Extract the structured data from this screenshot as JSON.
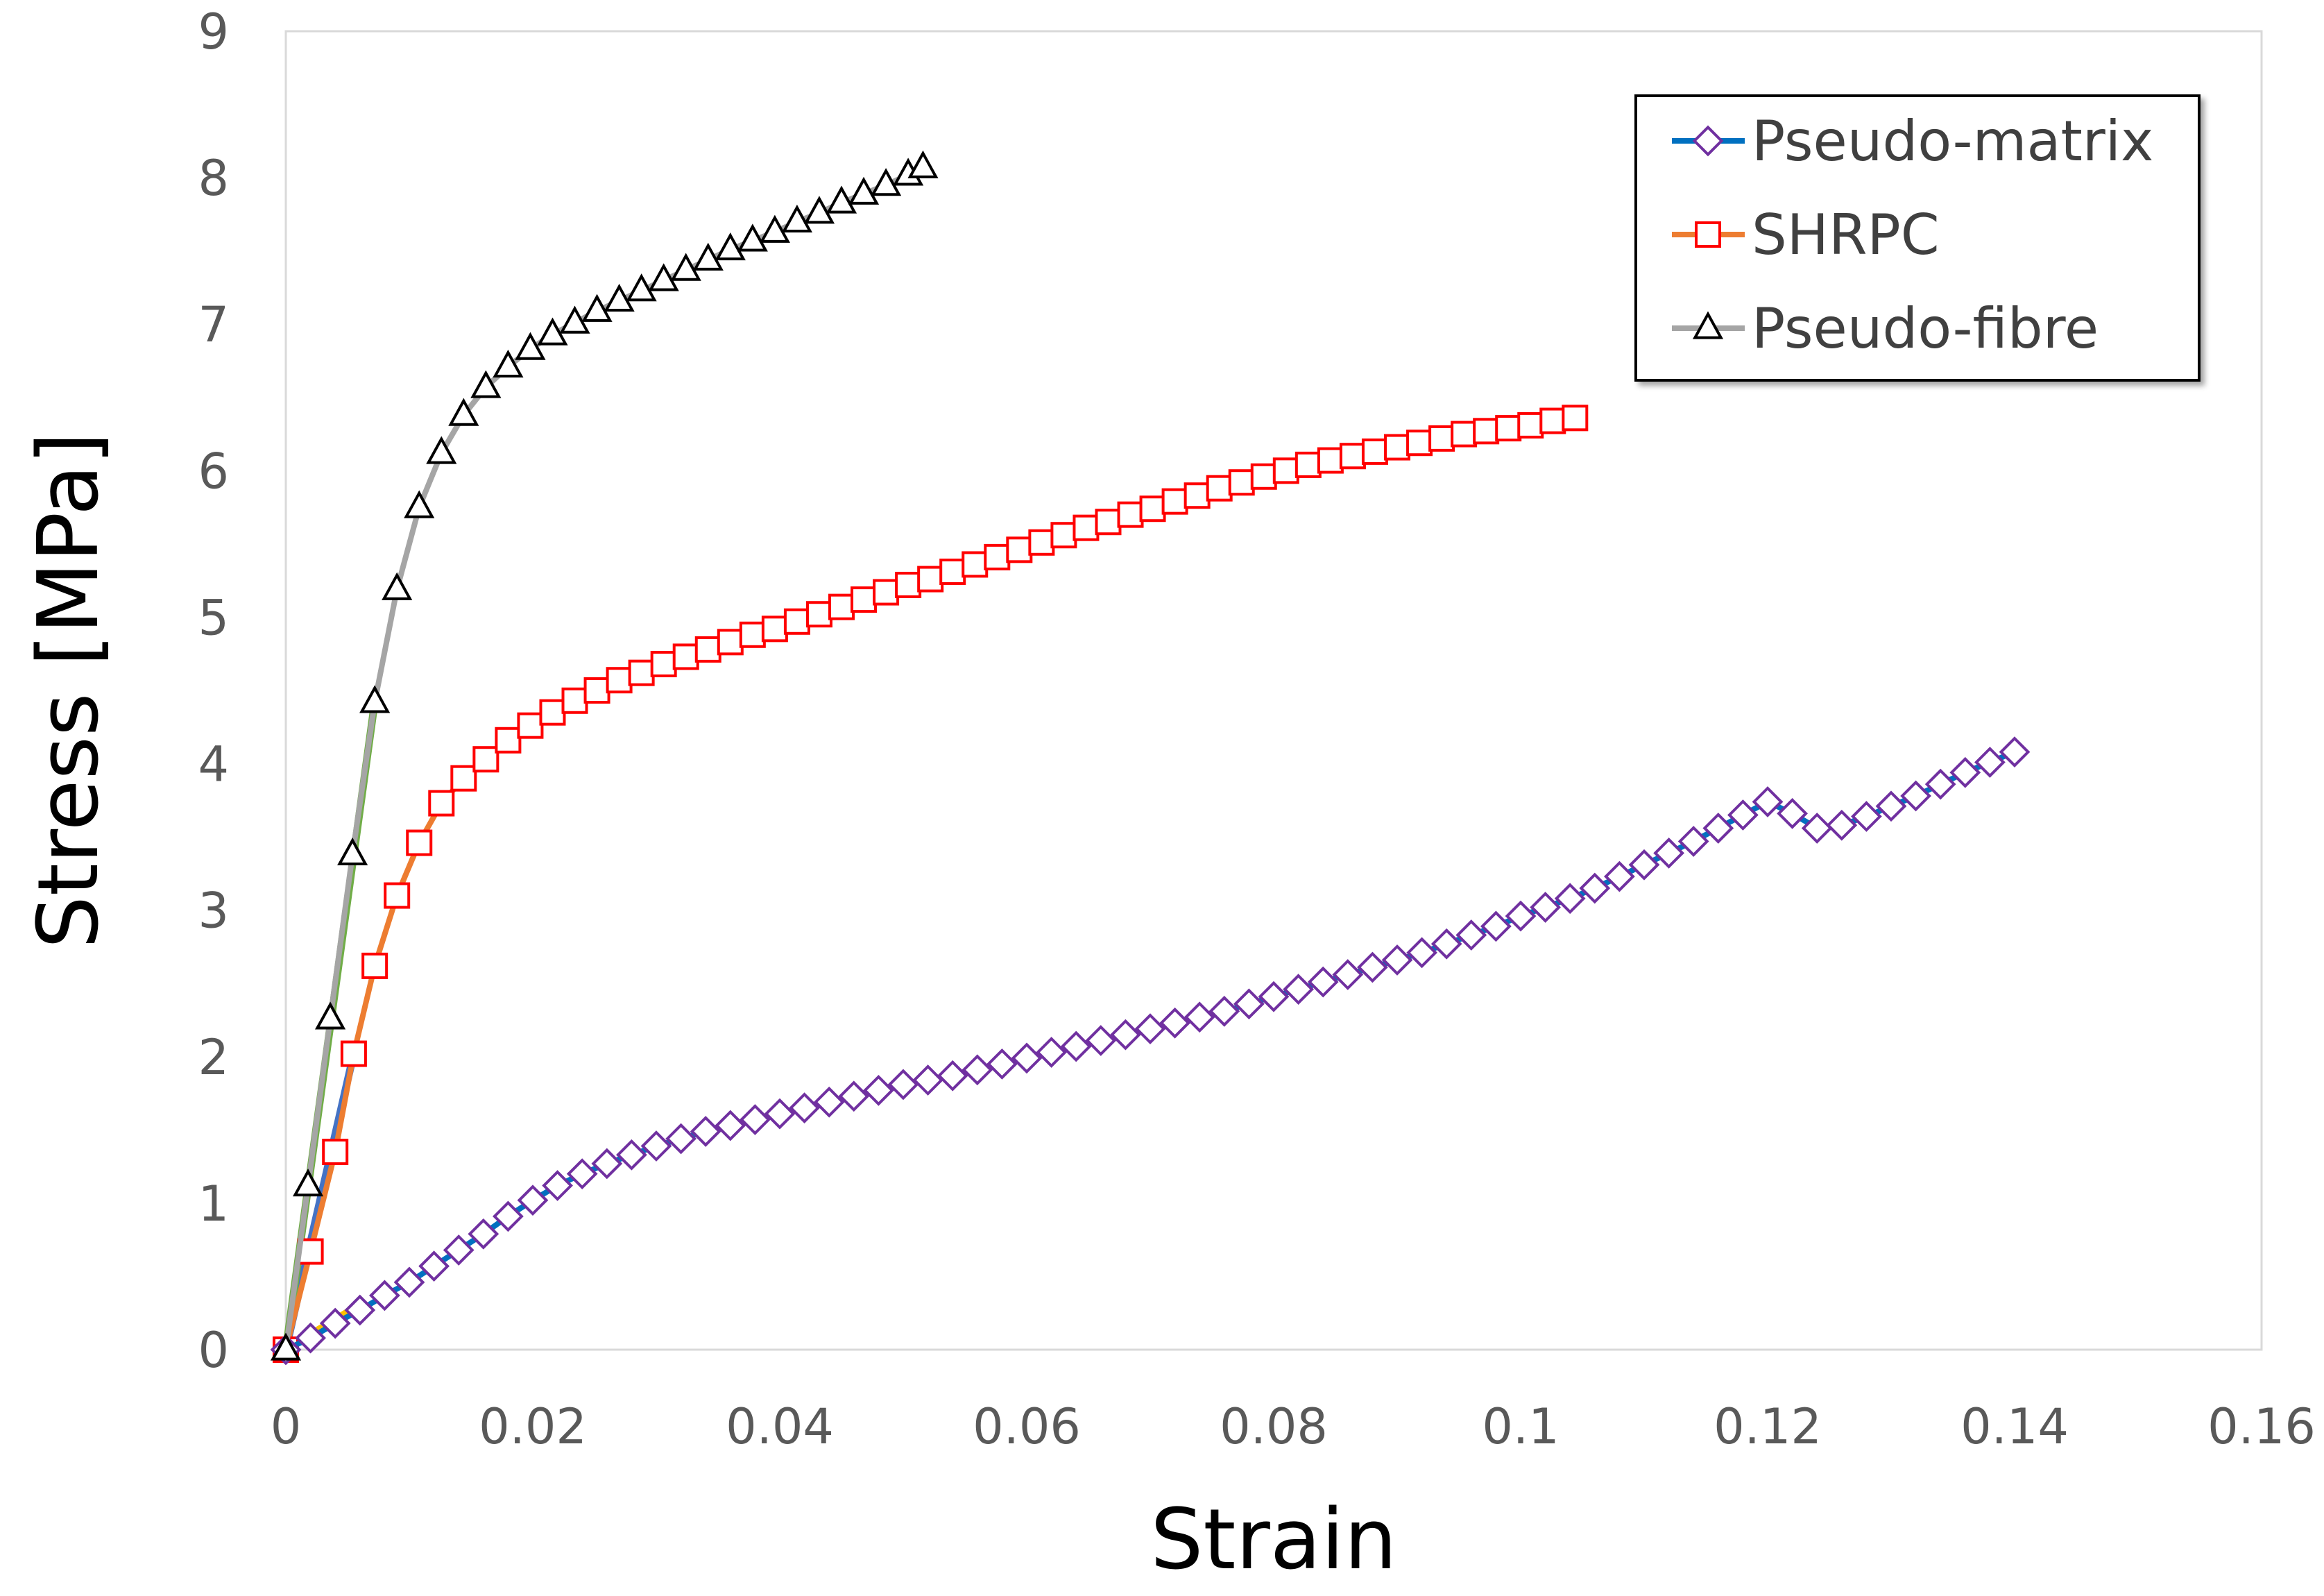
{
  "chart_data": {
    "type": "scatter",
    "title": "",
    "xlabel": "Strain",
    "ylabel": "Stress [MPa]",
    "xlim": [
      0,
      0.16
    ],
    "ylim": [
      0,
      9
    ],
    "grid": false,
    "legend_position": "top-right",
    "x_ticks": [
      "0",
      "0.02",
      "0.04",
      "0.06",
      "0.08",
      "0.1",
      "0.12",
      "0.14",
      "0.16"
    ],
    "y_ticks": [
      "0",
      "1",
      "2",
      "3",
      "4",
      "5",
      "6",
      "7",
      "8",
      "9"
    ],
    "series": [
      {
        "name": "Pseudo-matrix",
        "line_color": "#0070C0",
        "marker": "diamond",
        "marker_color": "#7030A0",
        "points": [
          [
            0,
            0
          ],
          [
            0.002,
            0.08
          ],
          [
            0.004,
            0.18
          ],
          [
            0.006,
            0.27
          ],
          [
            0.008,
            0.37
          ],
          [
            0.01,
            0.46
          ],
          [
            0.012,
            0.57
          ],
          [
            0.014,
            0.68
          ],
          [
            0.016,
            0.79
          ],
          [
            0.018,
            0.91
          ],
          [
            0.02,
            1.02
          ],
          [
            0.022,
            1.12
          ],
          [
            0.024,
            1.2
          ],
          [
            0.026,
            1.27
          ],
          [
            0.028,
            1.33
          ],
          [
            0.03,
            1.39
          ],
          [
            0.032,
            1.44
          ],
          [
            0.034,
            1.49
          ],
          [
            0.036,
            1.53
          ],
          [
            0.038,
            1.57
          ],
          [
            0.04,
            1.61
          ],
          [
            0.042,
            1.65
          ],
          [
            0.044,
            1.69
          ],
          [
            0.046,
            1.73
          ],
          [
            0.048,
            1.77
          ],
          [
            0.05,
            1.81
          ],
          [
            0.052,
            1.84
          ],
          [
            0.054,
            1.87
          ],
          [
            0.056,
            1.91
          ],
          [
            0.058,
            1.95
          ],
          [
            0.06,
            1.99
          ],
          [
            0.062,
            2.03
          ],
          [
            0.064,
            2.07
          ],
          [
            0.066,
            2.11
          ],
          [
            0.068,
            2.15
          ],
          [
            0.07,
            2.19
          ],
          [
            0.072,
            2.23
          ],
          [
            0.074,
            2.27
          ],
          [
            0.076,
            2.31
          ],
          [
            0.078,
            2.36
          ],
          [
            0.08,
            2.41
          ],
          [
            0.082,
            2.46
          ],
          [
            0.084,
            2.51
          ],
          [
            0.086,
            2.56
          ],
          [
            0.088,
            2.61
          ],
          [
            0.09,
            2.66
          ],
          [
            0.092,
            2.71
          ],
          [
            0.094,
            2.77
          ],
          [
            0.096,
            2.83
          ],
          [
            0.098,
            2.89
          ],
          [
            0.1,
            2.96
          ],
          [
            0.102,
            3.02
          ],
          [
            0.104,
            3.08
          ],
          [
            0.106,
            3.15
          ],
          [
            0.108,
            3.23
          ],
          [
            0.11,
            3.31
          ],
          [
            0.112,
            3.39
          ],
          [
            0.114,
            3.47
          ],
          [
            0.116,
            3.56
          ],
          [
            0.118,
            3.65
          ],
          [
            0.12,
            3.74
          ],
          [
            0.122,
            3.66
          ],
          [
            0.124,
            3.56
          ],
          [
            0.126,
            3.58
          ],
          [
            0.128,
            3.64
          ],
          [
            0.13,
            3.71
          ],
          [
            0.132,
            3.78
          ],
          [
            0.134,
            3.86
          ],
          [
            0.136,
            3.94
          ],
          [
            0.138,
            4.01
          ],
          [
            0.14,
            4.08
          ]
        ]
      },
      {
        "name": "SHRPC",
        "line_color": "#ED7D31",
        "marker": "square",
        "marker_color": "#FF0000",
        "points": [
          [
            0,
            0
          ],
          [
            0.002,
            0.67
          ],
          [
            0.004,
            1.35
          ],
          [
            0.0055,
            2.02
          ],
          [
            0.0072,
            2.62
          ],
          [
            0.009,
            3.1
          ],
          [
            0.0108,
            3.46
          ],
          [
            0.0126,
            3.73
          ],
          [
            0.0144,
            3.9
          ],
          [
            0.0162,
            4.03
          ],
          [
            0.018,
            4.16
          ],
          [
            0.0198,
            4.26
          ],
          [
            0.0216,
            4.35
          ],
          [
            0.0234,
            4.43
          ],
          [
            0.0252,
            4.5
          ],
          [
            0.027,
            4.57
          ],
          [
            0.0288,
            4.62
          ],
          [
            0.0306,
            4.68
          ],
          [
            0.0324,
            4.73
          ],
          [
            0.0342,
            4.78
          ],
          [
            0.036,
            4.83
          ],
          [
            0.0378,
            4.88
          ],
          [
            0.0396,
            4.92
          ],
          [
            0.0414,
            4.97
          ],
          [
            0.0432,
            5.02
          ],
          [
            0.045,
            5.07
          ],
          [
            0.0468,
            5.12
          ],
          [
            0.0486,
            5.17
          ],
          [
            0.0504,
            5.22
          ],
          [
            0.0522,
            5.26
          ],
          [
            0.054,
            5.31
          ],
          [
            0.0558,
            5.36
          ],
          [
            0.0576,
            5.41
          ],
          [
            0.0594,
            5.46
          ],
          [
            0.0612,
            5.51
          ],
          [
            0.063,
            5.56
          ],
          [
            0.0648,
            5.61
          ],
          [
            0.0666,
            5.65
          ],
          [
            0.0684,
            5.7
          ],
          [
            0.0702,
            5.74
          ],
          [
            0.072,
            5.79
          ],
          [
            0.0738,
            5.83
          ],
          [
            0.0756,
            5.88
          ],
          [
            0.0774,
            5.92
          ],
          [
            0.0792,
            5.96
          ],
          [
            0.081,
            6.0
          ],
          [
            0.0828,
            6.04
          ],
          [
            0.0846,
            6.07
          ],
          [
            0.0864,
            6.1
          ],
          [
            0.0882,
            6.13
          ],
          [
            0.09,
            6.16
          ],
          [
            0.0918,
            6.19
          ],
          [
            0.0936,
            6.22
          ],
          [
            0.0954,
            6.25
          ],
          [
            0.0972,
            6.27
          ],
          [
            0.099,
            6.29
          ],
          [
            0.1008,
            6.31
          ],
          [
            0.1026,
            6.34
          ],
          [
            0.1044,
            6.36
          ]
        ]
      },
      {
        "name": "Pseudo-fibre",
        "line_color": "#A5A5A5",
        "marker": "triangle",
        "marker_color": "#000000",
        "points": [
          [
            0,
            0
          ],
          [
            0.0018,
            1.12
          ],
          [
            0.0036,
            2.26
          ],
          [
            0.0054,
            3.38
          ],
          [
            0.0072,
            4.42
          ],
          [
            0.009,
            5.19
          ],
          [
            0.0108,
            5.75
          ],
          [
            0.0126,
            6.12
          ],
          [
            0.0144,
            6.38
          ],
          [
            0.0162,
            6.57
          ],
          [
            0.018,
            6.71
          ],
          [
            0.0198,
            6.83
          ],
          [
            0.0216,
            6.93
          ],
          [
            0.0234,
            7.01
          ],
          [
            0.0252,
            7.09
          ],
          [
            0.027,
            7.16
          ],
          [
            0.0288,
            7.23
          ],
          [
            0.0306,
            7.3
          ],
          [
            0.0324,
            7.37
          ],
          [
            0.0342,
            7.44
          ],
          [
            0.036,
            7.51
          ],
          [
            0.0378,
            7.57
          ],
          [
            0.0396,
            7.63
          ],
          [
            0.0414,
            7.7
          ],
          [
            0.0432,
            7.76
          ],
          [
            0.045,
            7.83
          ],
          [
            0.0468,
            7.89
          ],
          [
            0.0486,
            7.95
          ],
          [
            0.0504,
            8.02
          ],
          [
            0.0516,
            8.07
          ]
        ]
      }
    ],
    "fit_lines": [
      {
        "color": "#4472C4",
        "from": [
          0,
          0
        ],
        "to": [
          0.0055,
          2.02
        ]
      },
      {
        "color": "#FFC000",
        "from": [
          0,
          0
        ],
        "to": [
          0.0055,
          0.28
        ]
      },
      {
        "color": "#70AD47",
        "from": [
          0,
          0
        ],
        "to": [
          0.0072,
          4.42
        ]
      }
    ]
  }
}
